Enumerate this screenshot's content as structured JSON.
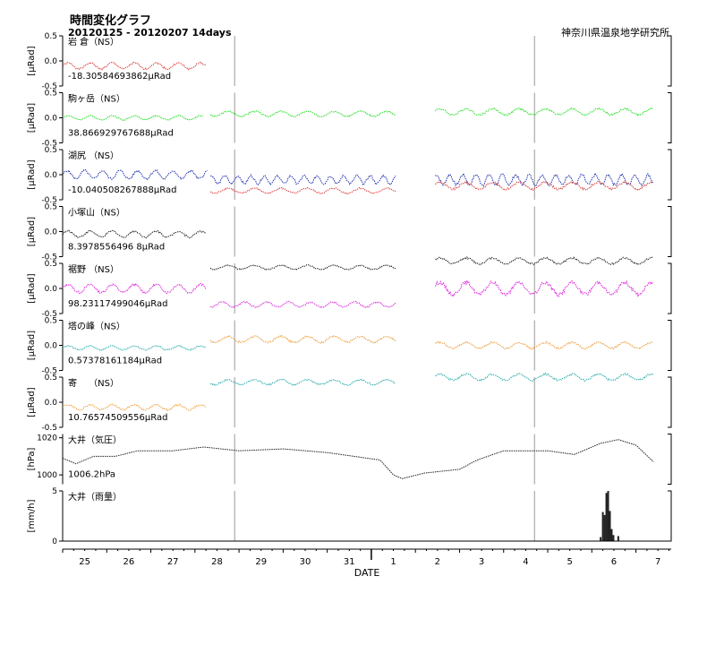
{
  "header": {
    "title": "時間変化グラフ",
    "range": "20120125 - 20120207 14days",
    "institution": "神奈川県温泉地学研究所"
  },
  "chart_data": {
    "type": "line",
    "xlabel": "DATE",
    "x_ticks": [
      "25",
      "26",
      "27",
      "28",
      "29",
      "30",
      "31",
      "1",
      "2",
      "3",
      "4",
      "5",
      "6",
      "7"
    ],
    "x_domain_days": [
      0,
      13.8
    ],
    "panels": [
      {
        "id": "iwakura",
        "name": "岩 倉（NS）",
        "ylabel": "[μRad]",
        "ylim": [
          -0.5,
          0.5
        ],
        "yticks": [
          "0.5",
          "0.0",
          "-0.5"
        ],
        "offset": "-18.30584693862μRad",
        "series": [
          {
            "color": "#dd3b3b",
            "segments": [
              {
                "t": [
                  0,
                  3.25
                ],
                "base": -0.1,
                "amp": 0.06,
                "period": 0.5,
                "seed": 1
              }
            ]
          }
        ]
      },
      {
        "id": "komagatake",
        "name": "駒ヶ岳（NS）",
        "ylabel": "[μRad]",
        "ylim": [
          -0.5,
          0.5
        ],
        "yticks": [
          "0.5",
          "0.0",
          "-0.5"
        ],
        "offset": "38.866929767688μRad",
        "series": [
          {
            "color": "#22dd22",
            "segments": [
              {
                "t": [
                  0,
                  3.2
                ],
                "base": 0.0,
                "amp": 0.04,
                "period": 0.5,
                "seed": 2
              },
              {
                "t": [
                  3.35,
                  7.55
                ],
                "base": 0.08,
                "amp": 0.05,
                "period": 0.6,
                "seed": 3
              },
              {
                "t": [
                  8.45,
                  13.4
                ],
                "base": 0.12,
                "amp": 0.06,
                "period": 0.6,
                "seed": 4
              }
            ]
          }
        ]
      },
      {
        "id": "kojiri",
        "name": "湖尻 （NS）",
        "ylabel": "[μRad]",
        "ylim": [
          -0.5,
          0.5
        ],
        "yticks": [
          "0.5",
          "0.0",
          "-0.5"
        ],
        "offset": "-10.040508267888μRad",
        "series": [
          {
            "color": "#2233aa",
            "segments": [
              {
                "t": [
                  0,
                  3.3
                ],
                "base": 0.0,
                "amp": 0.08,
                "period": 0.4,
                "seed": 5
              },
              {
                "t": [
                  3.35,
                  7.55
                ],
                "base": -0.1,
                "amp": 0.08,
                "period": 0.3,
                "seed": 6
              },
              {
                "t": [
                  8.45,
                  13.4
                ],
                "base": -0.1,
                "amp": 0.1,
                "period": 0.3,
                "seed": 7
              }
            ]
          },
          {
            "color": "#dd3b3b",
            "segments": [
              {
                "t": [
                  3.35,
                  7.55
                ],
                "base": -0.32,
                "amp": 0.05,
                "period": 0.6,
                "seed": 8
              },
              {
                "t": [
                  8.45,
                  13.4
                ],
                "base": -0.22,
                "amp": 0.07,
                "period": 0.6,
                "seed": 9
              }
            ]
          }
        ]
      },
      {
        "id": "kozukayama",
        "name": "小塚山（NS）",
        "ylabel": "[μRad]",
        "ylim": [
          -0.5,
          0.5
        ],
        "yticks": [
          "0.5",
          "0.0",
          "-0.5"
        ],
        "offset": "8.3978556496 8μRad",
        "series": [
          {
            "color": "#222222",
            "segments": [
              {
                "t": [
                  0,
                  3.25
                ],
                "base": -0.05,
                "amp": 0.06,
                "period": 0.5,
                "seed": 10
              }
            ]
          }
        ]
      },
      {
        "id": "hatano",
        "name": "裾野 （NS）",
        "ylabel": "[μRad]",
        "ylim": [
          -0.5,
          0.5
        ],
        "yticks": [
          "0.5",
          "0.0",
          "-0.5"
        ],
        "offset": "98.23117499046μRad",
        "series": [
          {
            "color": "#222222",
            "segments": [
              {
                "t": [
                  3.35,
                  7.55
                ],
                "base": 0.42,
                "amp": 0.04,
                "period": 0.6,
                "seed": 11
              },
              {
                "t": [
                  8.45,
                  13.4
                ],
                "base": 0.55,
                "amp": 0.06,
                "period": 0.6,
                "seed": 12
              }
            ]
          },
          {
            "color": "#dd22dd",
            "segments": [
              {
                "t": [
                  0,
                  3.25
                ],
                "base": 0.0,
                "amp": 0.08,
                "period": 0.5,
                "seed": 13
              },
              {
                "t": [
                  3.35,
                  7.55
                ],
                "base": -0.32,
                "amp": 0.05,
                "period": 0.5,
                "seed": 14
              },
              {
                "t": [
                  8.45,
                  13.4
                ],
                "base": 0.0,
                "amp": 0.12,
                "period": 0.6,
                "seed": 15
              }
            ]
          }
        ]
      },
      {
        "id": "tonomine",
        "name": "塔の峰（NS）",
        "ylabel": "[μRad]",
        "ylim": [
          -0.5,
          0.5
        ],
        "yticks": [
          "0.5",
          "0.0",
          "-0.5"
        ],
        "offset": "0.57378161184μRad",
        "series": [
          {
            "color": "#22aaaa",
            "segments": [
              {
                "t": [
                  0,
                  3.25
                ],
                "base": -0.05,
                "amp": 0.04,
                "period": 0.5,
                "seed": 16
              }
            ]
          },
          {
            "color": "#ee9a33",
            "segments": [
              {
                "t": [
                  3.35,
                  7.55
                ],
                "base": 0.12,
                "amp": 0.06,
                "period": 0.6,
                "seed": 17
              },
              {
                "t": [
                  8.45,
                  13.4
                ],
                "base": 0.0,
                "amp": 0.06,
                "period": 0.6,
                "seed": 18
              }
            ]
          }
        ]
      },
      {
        "id": "yadoriki",
        "name": "寄　 （NS）",
        "ylabel": "[μRad]",
        "ylim": [
          -0.5,
          0.5
        ],
        "yticks": [
          "0.5",
          "0.0",
          "-0.5"
        ],
        "offset": "10.76574509556μRad",
        "series": [
          {
            "color": "#ee9a33",
            "segments": [
              {
                "t": [
                  0,
                  3.25
                ],
                "base": -0.1,
                "amp": 0.05,
                "period": 0.5,
                "seed": 19
              }
            ]
          },
          {
            "color": "#22aaaa",
            "segments": [
              {
                "t": [
                  3.35,
                  7.55
                ],
                "base": 0.4,
                "amp": 0.05,
                "period": 0.6,
                "seed": 20
              },
              {
                "t": [
                  8.45,
                  13.4
                ],
                "base": 0.5,
                "amp": 0.06,
                "period": 0.6,
                "seed": 21
              }
            ]
          }
        ]
      },
      {
        "id": "ooi-pressure",
        "name": "大井（気圧）",
        "ylabel": "[hPa]",
        "ylim": [
          995,
          1022
        ],
        "yticks": [
          "1020",
          "1000"
        ],
        "offset": "1006.2hPa",
        "series": [
          {
            "color": "#222222",
            "points": [
              [
                0,
                1009
              ],
              [
                0.3,
                1006
              ],
              [
                0.7,
                1010
              ],
              [
                1.2,
                1010
              ],
              [
                1.7,
                1013
              ],
              [
                2.5,
                1013
              ],
              [
                3.2,
                1015
              ],
              [
                4,
                1013
              ],
              [
                5,
                1014
              ],
              [
                6,
                1012
              ],
              [
                7.2,
                1008
              ],
              [
                7.5,
                1000
              ],
              [
                7.7,
                998
              ],
              [
                8.2,
                1001
              ],
              [
                9,
                1003
              ],
              [
                9.4,
                1008
              ],
              [
                10,
                1013
              ],
              [
                11,
                1013
              ],
              [
                11.6,
                1011
              ],
              [
                12.2,
                1017
              ],
              [
                12.6,
                1019
              ],
              [
                13.0,
                1016
              ],
              [
                13.4,
                1007
              ]
            ]
          }
        ]
      },
      {
        "id": "ooi-rain",
        "name": "大井（雨量）",
        "ylabel": "[mm/h]",
        "ylim": [
          0,
          5
        ],
        "yticks": [
          "5",
          "0"
        ],
        "bars": [
          [
            12.2,
            0.4
          ],
          [
            12.25,
            2.9
          ],
          [
            12.29,
            2.6
          ],
          [
            12.33,
            4.8
          ],
          [
            12.37,
            5.0
          ],
          [
            12.41,
            3.0
          ],
          [
            12.45,
            1.2
          ],
          [
            12.49,
            0.6
          ],
          [
            12.6,
            0.5
          ]
        ]
      }
    ],
    "event_lines_days": [
      3.9,
      10.7
    ]
  }
}
